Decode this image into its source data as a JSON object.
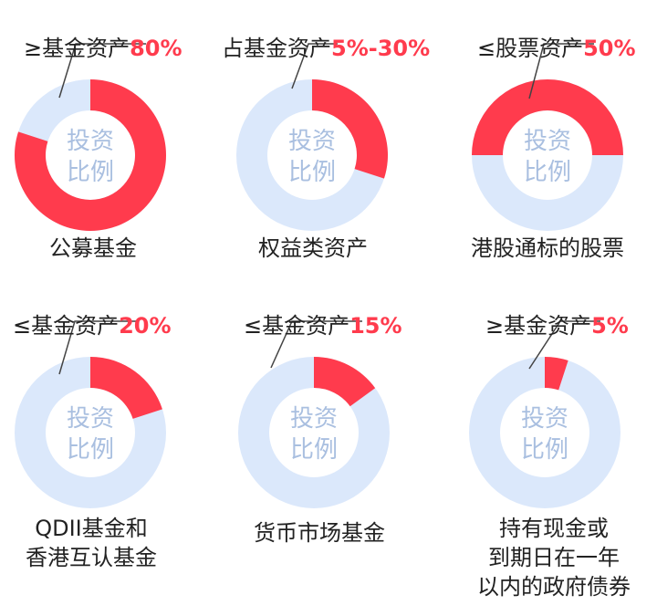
{
  "colors": {
    "filled": "#ff3b4d",
    "track": "#dbe8fb",
    "center_text": "#a9bfe0",
    "leader": "#444444"
  },
  "center_text": {
    "line1": "投资",
    "line2": "比例"
  },
  "chart_data": [
    {
      "type": "pie",
      "label_prefix": "≥基金资产",
      "label_value": "80%",
      "share": 0.8,
      "start": 0.0,
      "caption": [
        "公募基金"
      ]
    },
    {
      "type": "pie",
      "label_prefix": "占基金资产",
      "label_value": "5%-30%",
      "share": 0.3,
      "start": 0.0,
      "caption": [
        "权益类资产"
      ]
    },
    {
      "type": "pie",
      "label_prefix": "≤股票资产",
      "label_value": "50%",
      "share": 0.5,
      "start": 0.75,
      "caption": [
        "港股通标的股票"
      ]
    },
    {
      "type": "pie",
      "label_prefix": "≤基金资产",
      "label_value": "20%",
      "share": 0.2,
      "start": 0.0,
      "caption": [
        "QDII基金和",
        "香港互认基金"
      ]
    },
    {
      "type": "pie",
      "label_prefix": "≤基金资产",
      "label_value": "15%",
      "share": 0.15,
      "start": 0.0,
      "caption": [
        "货币市场基金"
      ]
    },
    {
      "type": "pie",
      "label_prefix": "≥基金资产",
      "label_value": "5%",
      "share": 0.05,
      "start": 0.0,
      "caption": [
        "持有现金或",
        "到期日在一年",
        "以内的政府债券"
      ]
    }
  ]
}
